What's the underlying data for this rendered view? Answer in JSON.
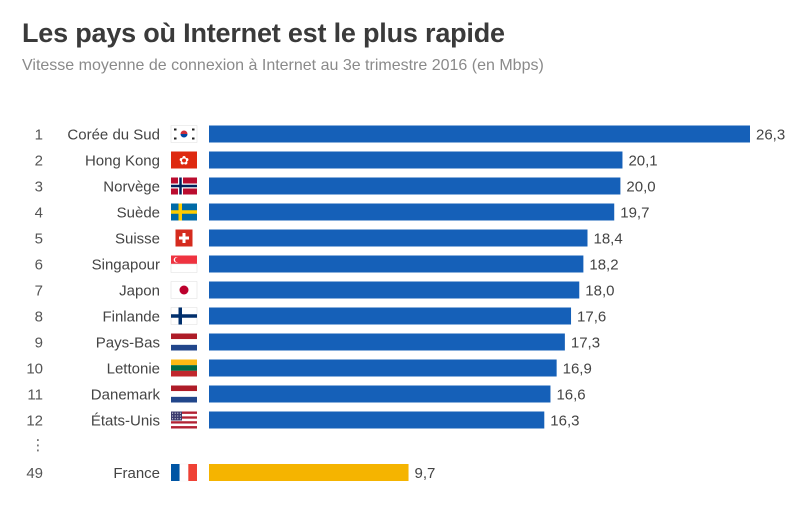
{
  "title": "Les pays où Internet est le plus rapide",
  "subtitle": "Vitesse moyenne de connexion à Internet au 3e trimestre 2016 (en Mbps)",
  "colors": {
    "bar": "#1560b8",
    "highlight": "#f5b400"
  },
  "chart_data": {
    "type": "bar",
    "orientation": "horizontal",
    "title": "Les pays où Internet est le plus rapide",
    "subtitle": "Vitesse moyenne de connexion à Internet au 3e trimestre 2016 (en Mbps)",
    "xlabel": "",
    "ylabel": "",
    "xlim": [
      0,
      26.3
    ],
    "rows": [
      {
        "rank": "1",
        "country": "Corée du Sud",
        "flag": "south-korea",
        "value": 26.3,
        "label": "26,3"
      },
      {
        "rank": "2",
        "country": "Hong Kong",
        "flag": "hong-kong",
        "value": 20.1,
        "label": "20,1"
      },
      {
        "rank": "3",
        "country": "Norvège",
        "flag": "norway",
        "value": 20.0,
        "label": "20,0"
      },
      {
        "rank": "4",
        "country": "Suède",
        "flag": "sweden",
        "value": 19.7,
        "label": "19,7"
      },
      {
        "rank": "5",
        "country": "Suisse",
        "flag": "switzerland",
        "value": 18.4,
        "label": "18,4"
      },
      {
        "rank": "6",
        "country": "Singapour",
        "flag": "singapore",
        "value": 18.2,
        "label": "18,2"
      },
      {
        "rank": "7",
        "country": "Japon",
        "flag": "japan",
        "value": 18.0,
        "label": "18,0"
      },
      {
        "rank": "8",
        "country": "Finlande",
        "flag": "finland",
        "value": 17.6,
        "label": "17,6"
      },
      {
        "rank": "9",
        "country": "Pays-Bas",
        "flag": "netherlands",
        "value": 17.3,
        "label": "17,3"
      },
      {
        "rank": "10",
        "country": "Lettonie",
        "flag": "latvia",
        "value": 16.9,
        "label": "16,9"
      },
      {
        "rank": "11",
        "country": "Danemark",
        "flag": "denmark",
        "value": 16.6,
        "label": "16,6"
      },
      {
        "rank": "12",
        "country": "États-Unis",
        "flag": "usa",
        "value": 16.3,
        "label": "16,3"
      }
    ],
    "gap_marker": "⋮",
    "highlight": {
      "rank": "49",
      "country": "France",
      "flag": "france",
      "value": 9.7,
      "label": "9,7"
    }
  }
}
